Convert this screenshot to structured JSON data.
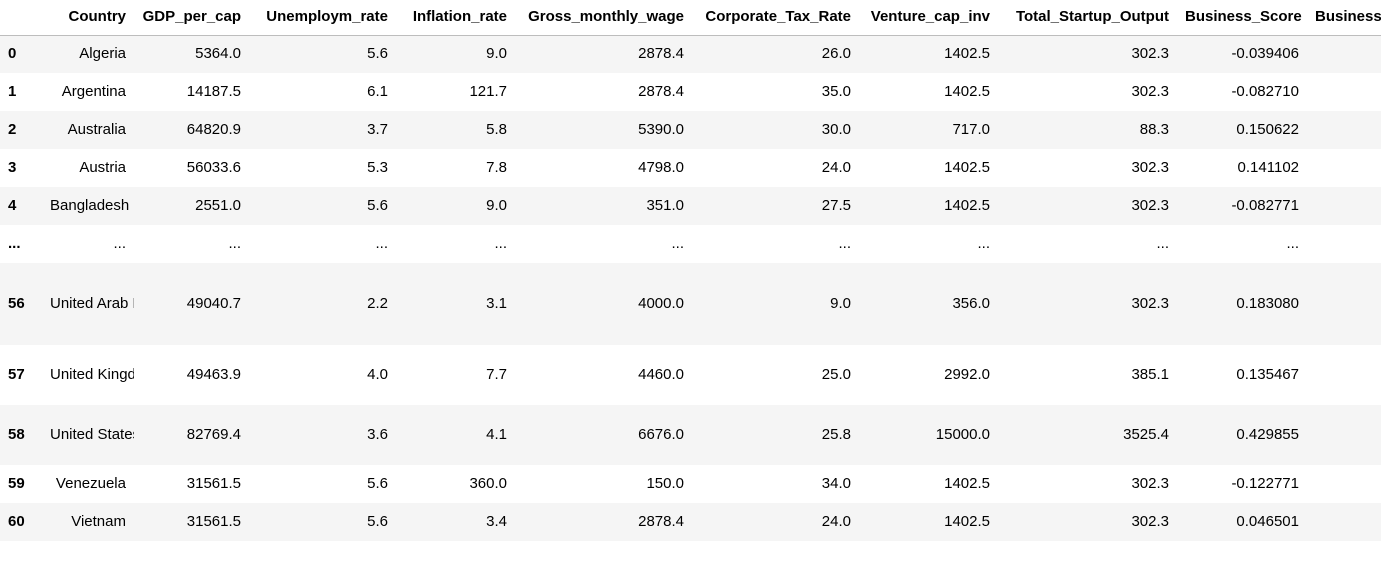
{
  "table": {
    "index_header": "",
    "columns": [
      "Country",
      "GDP_per_cap",
      "Unemploym_rate",
      "Inflation_rate",
      "Gross_monthly_wage",
      "Corporate_Tax_Rate",
      "Venture_cap_inv",
      "Total_Startup_Output",
      "Business_Score",
      "Business"
    ],
    "rows": [
      {
        "index": "0",
        "cells": [
          "Algeria",
          "5364.0",
          "5.6",
          "9.0",
          "2878.4",
          "26.0",
          "1402.5",
          "302.3",
          "-0.039406",
          ""
        ]
      },
      {
        "index": "1",
        "cells": [
          "Argentina",
          "14187.5",
          "6.1",
          "121.7",
          "2878.4",
          "35.0",
          "1402.5",
          "302.3",
          "-0.082710",
          ""
        ]
      },
      {
        "index": "2",
        "cells": [
          "Australia",
          "64820.9",
          "3.7",
          "5.8",
          "5390.0",
          "30.0",
          "717.0",
          "88.3",
          "0.150622",
          ""
        ]
      },
      {
        "index": "3",
        "cells": [
          "Austria",
          "56033.6",
          "5.3",
          "7.8",
          "4798.0",
          "24.0",
          "1402.5",
          "302.3",
          "0.141102",
          ""
        ]
      },
      {
        "index": "4",
        "cells": [
          "Bangladesh",
          "2551.0",
          "5.6",
          "9.0",
          "351.0",
          "27.5",
          "1402.5",
          "302.3",
          "-0.082771",
          ""
        ]
      },
      {
        "index": "...",
        "cells": [
          "...",
          "...",
          "...",
          "...",
          "...",
          "...",
          "...",
          "...",
          "...",
          ""
        ]
      },
      {
        "index": "56",
        "cells": [
          "United Arab Emirates",
          "49040.7",
          "2.2",
          "3.1",
          "4000.0",
          "9.0",
          "356.0",
          "302.3",
          "0.183080",
          ""
        ]
      },
      {
        "index": "57",
        "cells": [
          "United Kingdom",
          "49463.9",
          "4.0",
          "7.7",
          "4460.0",
          "25.0",
          "2992.0",
          "385.1",
          "0.135467",
          ""
        ]
      },
      {
        "index": "58",
        "cells": [
          "United States",
          "82769.4",
          "3.6",
          "4.1",
          "6676.0",
          "25.8",
          "15000.0",
          "3525.4",
          "0.429855",
          ""
        ]
      },
      {
        "index": "59",
        "cells": [
          "Venezuela",
          "31561.5",
          "5.6",
          "360.0",
          "150.0",
          "34.0",
          "1402.5",
          "302.3",
          "-0.122771",
          ""
        ]
      },
      {
        "index": "60",
        "cells": [
          "Vietnam",
          "31561.5",
          "5.6",
          "3.4",
          "2878.4",
          "24.0",
          "1402.5",
          "302.3",
          "0.046501",
          ""
        ]
      }
    ]
  }
}
